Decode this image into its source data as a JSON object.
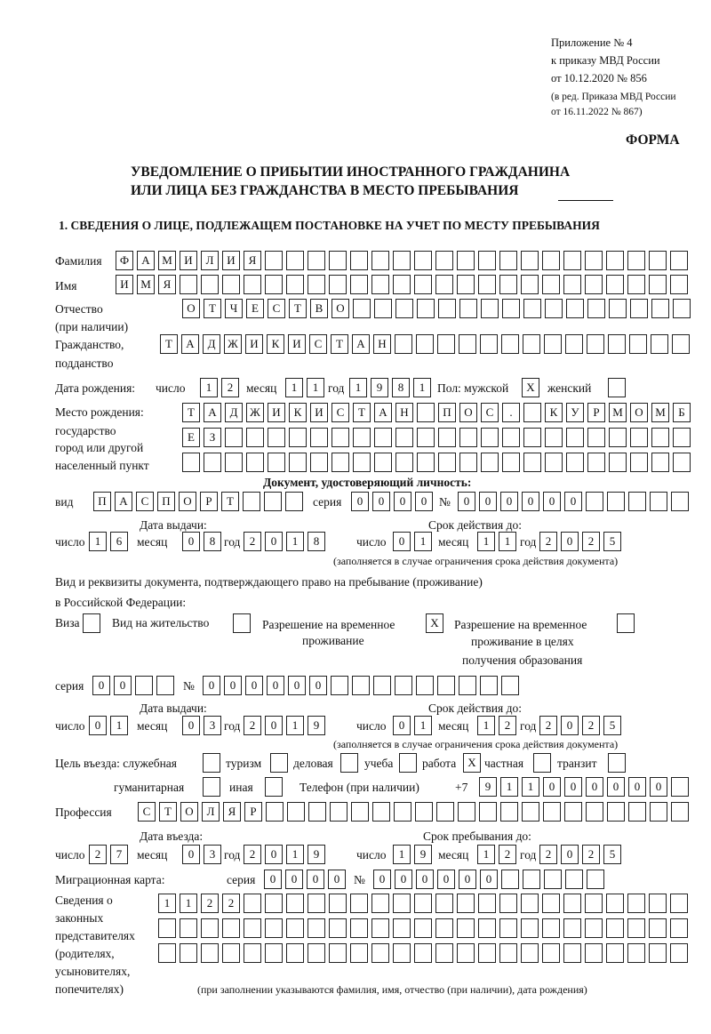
{
  "header": {
    "appendix": [
      "Приложение № 4",
      "к приказу МВД России",
      "от 10.12.2020 № 856"
    ],
    "revision": [
      "(в ред. Приказа МВД России",
      "от 16.11.2022 № 867)"
    ],
    "form_label": "ФОРМА",
    "title": [
      "УВЕДОМЛЕНИЕ О ПРИБЫТИИ ИНОСТРАННОГО ГРАЖДАНИНА",
      "ИЛИ ЛИЦА БЕЗ ГРАЖДАНСТВА В МЕСТО ПРЕБЫВАНИЯ"
    ],
    "section1": "1. СВЕДЕНИЯ О ЛИЦЕ, ПОДЛЕЖАЩЕМ ПОСТАНОВКЕ НА УЧЕТ ПО МЕСТУ ПРЕБЫВАНИЯ"
  },
  "labels": {
    "surname": "Фамилия",
    "name": "Имя",
    "patronymic": [
      "Отчество",
      "(при наличии)"
    ],
    "citizenship": [
      "Гражданство,",
      "подданство"
    ],
    "dob": "Дата рождения:",
    "day": "число",
    "month": "месяц",
    "year": "год",
    "sex_male": "Пол: мужской",
    "sex_female": "женский",
    "birthplace": [
      "Место рождения:",
      "государство",
      "город или другой",
      "населенный пункт"
    ],
    "id_doc": "Документ, удостоверяющий личность:",
    "kind": "вид",
    "series": "серия",
    "number": "№",
    "issue_date": "Дата выдачи:",
    "valid_until": "Срок действия до:",
    "validity_note": "(заполняется в случае ограничения срока действия документа)",
    "stay_doc": [
      "Вид и реквизиты документа, подтверждающего право на пребывание (проживание)",
      "в Российской Федерации:"
    ],
    "visa": "Виза",
    "residence": "Вид на жительство",
    "temp_residence": [
      "Разрешение на временное",
      "проживание"
    ],
    "temp_residence_edu": [
      "Разрешение на временное",
      "проживание в целях",
      "получения образования"
    ],
    "purpose": "Цель въезда: служебная",
    "tourism": "туризм",
    "business": "деловая",
    "study": "учеба",
    "work": "работа",
    "private": "частная",
    "transit": "транзит",
    "humanitarian": "гуманитарная",
    "other": "иная",
    "phone": "Телефон (при наличии)",
    "phone_prefix": "+7",
    "profession": "Профессия",
    "entry_date": "Дата въезда:",
    "stay_until": "Срок пребывания до:",
    "migration_card": "Миграционная карта:",
    "legal_reps": [
      "Сведения о",
      "законных",
      "представителях",
      "(родителях,",
      "усыновителях,",
      "попечителях)"
    ],
    "legal_reps_note": "(при заполнении указываются фамилия, имя, отчество (при наличии), дата рождения)"
  },
  "fields": {
    "surname": "ФАМИЛИЯ",
    "name": "ИМЯ",
    "patronymic": "ОТЧЕСТВО",
    "citizenship": "ТАДЖИКИСТАН",
    "dob_day": "12",
    "dob_month": "11",
    "dob_year": "1981",
    "sex_male": "X",
    "sex_female": "",
    "birthplace_1": "ТАДЖИКИСТАН ПОС. КУРМОМБ",
    "birthplace_2": "ЕЗ",
    "birthplace_3": "",
    "id_kind": "ПАСПОРТ",
    "id_series": "0000",
    "id_number": "000000",
    "id_issue_day": "16",
    "id_issue_month": "08",
    "id_issue_year": "2018",
    "id_valid_day": "01",
    "id_valid_month": "11",
    "id_valid_year": "2025",
    "visa": "",
    "residence": "",
    "temp_residence": "X",
    "temp_residence_edu": "",
    "stay_series": "00",
    "stay_number": "000000",
    "stay_issue_day": "01",
    "stay_issue_month": "03",
    "stay_issue_year": "2019",
    "stay_valid_day": "01",
    "stay_valid_month": "12",
    "stay_valid_year": "2025",
    "purpose_official": "",
    "purpose_tourism": "",
    "purpose_business": "",
    "purpose_study": "",
    "purpose_work": "X",
    "purpose_private": "",
    "purpose_transit": "",
    "purpose_humanitarian": "",
    "purpose_other": "",
    "phone": "911000000",
    "profession": "СТОЛЯР",
    "entry_day": "27",
    "entry_month": "03",
    "entry_year": "2019",
    "stay_until_day": "19",
    "stay_until_month": "12",
    "stay_until_year": "2025",
    "mig_series": "0000",
    "mig_number": "000000",
    "legal_reps_1": "1122",
    "legal_reps_2": "",
    "legal_reps_3": ""
  }
}
